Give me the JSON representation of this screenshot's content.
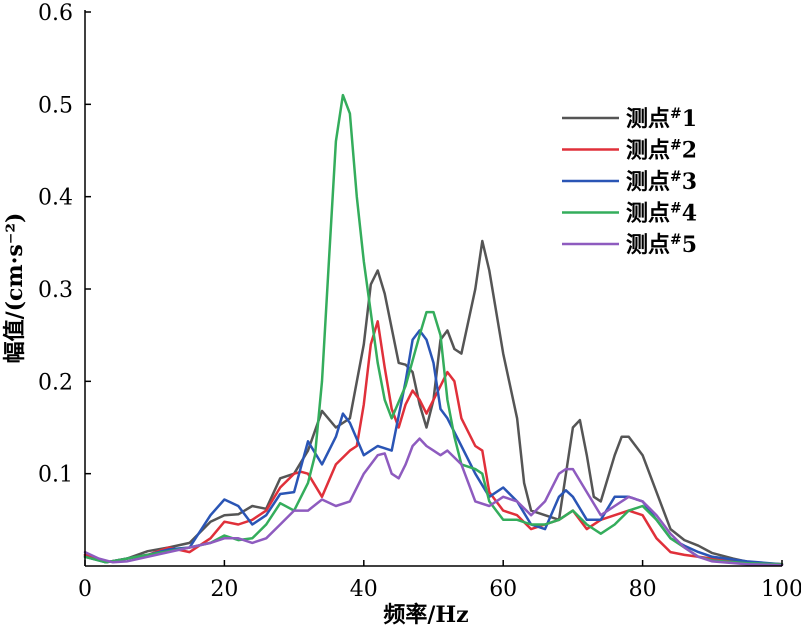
{
  "chart_data": {
    "type": "line",
    "xlabel": "频率/Hz",
    "ylabel": "幅值/(cm·s⁻²)",
    "xlim": [
      0,
      100
    ],
    "ylim": [
      0,
      0.6
    ],
    "xticks": [
      0,
      20,
      40,
      60,
      80,
      100
    ],
    "yticks": [
      0.1,
      0.2,
      0.3,
      0.4,
      0.5,
      0.6
    ],
    "xtick_labels": [
      "0",
      "20",
      "40",
      "60",
      "80",
      "100"
    ],
    "ytick_labels": [
      "0.1",
      "0.2",
      "0.3",
      "0.4",
      "0.5",
      "0.6"
    ],
    "grid": false,
    "legend_position": "top-right",
    "series": [
      {
        "name": "测点#1",
        "label_main": "测点",
        "label_sup": "#",
        "label_num": "1",
        "color": "#555555",
        "points": [
          [
            0,
            0.012
          ],
          [
            3,
            0.004
          ],
          [
            6,
            0.008
          ],
          [
            9,
            0.016
          ],
          [
            12,
            0.02
          ],
          [
            15,
            0.025
          ],
          [
            18,
            0.048
          ],
          [
            20,
            0.055
          ],
          [
            22,
            0.056
          ],
          [
            24,
            0.065
          ],
          [
            26,
            0.062
          ],
          [
            28,
            0.095
          ],
          [
            30,
            0.1
          ],
          [
            32,
            0.125
          ],
          [
            34,
            0.168
          ],
          [
            36,
            0.15
          ],
          [
            38,
            0.16
          ],
          [
            40,
            0.24
          ],
          [
            41,
            0.305
          ],
          [
            42,
            0.32
          ],
          [
            43,
            0.295
          ],
          [
            45,
            0.22
          ],
          [
            46,
            0.218
          ],
          [
            47,
            0.21
          ],
          [
            48,
            0.175
          ],
          [
            49,
            0.15
          ],
          [
            50,
            0.18
          ],
          [
            51,
            0.245
          ],
          [
            52,
            0.255
          ],
          [
            53,
            0.235
          ],
          [
            54,
            0.23
          ],
          [
            56,
            0.3
          ],
          [
            57,
            0.352
          ],
          [
            58,
            0.32
          ],
          [
            60,
            0.23
          ],
          [
            62,
            0.16
          ],
          [
            63,
            0.09
          ],
          [
            64,
            0.06
          ],
          [
            66,
            0.055
          ],
          [
            68,
            0.05
          ],
          [
            70,
            0.15
          ],
          [
            71,
            0.158
          ],
          [
            72,
            0.12
          ],
          [
            73,
            0.075
          ],
          [
            74,
            0.07
          ],
          [
            76,
            0.12
          ],
          [
            77,
            0.14
          ],
          [
            78,
            0.14
          ],
          [
            80,
            0.12
          ],
          [
            82,
            0.08
          ],
          [
            84,
            0.04
          ],
          [
            86,
            0.028
          ],
          [
            88,
            0.022
          ],
          [
            90,
            0.014
          ],
          [
            93,
            0.008
          ],
          [
            96,
            0.003
          ],
          [
            100,
            0.002
          ]
        ]
      },
      {
        "name": "测点#2",
        "label_main": "测点",
        "label_sup": "#",
        "label_num": "2",
        "color": "#e0303a",
        "points": [
          [
            0,
            0.012
          ],
          [
            3,
            0.004
          ],
          [
            6,
            0.008
          ],
          [
            9,
            0.012
          ],
          [
            12,
            0.02
          ],
          [
            15,
            0.015
          ],
          [
            18,
            0.03
          ],
          [
            20,
            0.048
          ],
          [
            22,
            0.045
          ],
          [
            24,
            0.05
          ],
          [
            26,
            0.06
          ],
          [
            28,
            0.085
          ],
          [
            30,
            0.1
          ],
          [
            31,
            0.102
          ],
          [
            32,
            0.1
          ],
          [
            34,
            0.075
          ],
          [
            36,
            0.11
          ],
          [
            38,
            0.125
          ],
          [
            39,
            0.13
          ],
          [
            40,
            0.175
          ],
          [
            41,
            0.24
          ],
          [
            42,
            0.265
          ],
          [
            43,
            0.215
          ],
          [
            44,
            0.17
          ],
          [
            45,
            0.15
          ],
          [
            46,
            0.175
          ],
          [
            47,
            0.19
          ],
          [
            48,
            0.18
          ],
          [
            49,
            0.165
          ],
          [
            50,
            0.18
          ],
          [
            51,
            0.195
          ],
          [
            52,
            0.21
          ],
          [
            53,
            0.2
          ],
          [
            54,
            0.16
          ],
          [
            56,
            0.13
          ],
          [
            57,
            0.125
          ],
          [
            58,
            0.08
          ],
          [
            60,
            0.06
          ],
          [
            62,
            0.055
          ],
          [
            64,
            0.04
          ],
          [
            66,
            0.045
          ],
          [
            68,
            0.05
          ],
          [
            70,
            0.06
          ],
          [
            72,
            0.04
          ],
          [
            74,
            0.05
          ],
          [
            76,
            0.055
          ],
          [
            78,
            0.06
          ],
          [
            80,
            0.055
          ],
          [
            82,
            0.03
          ],
          [
            84,
            0.015
          ],
          [
            86,
            0.012
          ],
          [
            88,
            0.01
          ],
          [
            90,
            0.008
          ],
          [
            95,
            0.004
          ],
          [
            100,
            0.002
          ]
        ]
      },
      {
        "name": "测点#3",
        "label_main": "测点",
        "label_sup": "#",
        "label_num": "3",
        "color": "#2a55b5",
        "points": [
          [
            0,
            0.01
          ],
          [
            3,
            0.004
          ],
          [
            6,
            0.008
          ],
          [
            9,
            0.012
          ],
          [
            12,
            0.018
          ],
          [
            15,
            0.02
          ],
          [
            18,
            0.055
          ],
          [
            20,
            0.072
          ],
          [
            22,
            0.065
          ],
          [
            24,
            0.045
          ],
          [
            26,
            0.055
          ],
          [
            28,
            0.078
          ],
          [
            30,
            0.08
          ],
          [
            32,
            0.135
          ],
          [
            34,
            0.11
          ],
          [
            36,
            0.14
          ],
          [
            37,
            0.165
          ],
          [
            38,
            0.155
          ],
          [
            40,
            0.12
          ],
          [
            42,
            0.13
          ],
          [
            44,
            0.125
          ],
          [
            46,
            0.2
          ],
          [
            47,
            0.245
          ],
          [
            48,
            0.255
          ],
          [
            49,
            0.245
          ],
          [
            50,
            0.22
          ],
          [
            51,
            0.17
          ],
          [
            52,
            0.16
          ],
          [
            54,
            0.13
          ],
          [
            56,
            0.1
          ],
          [
            58,
            0.075
          ],
          [
            60,
            0.085
          ],
          [
            62,
            0.07
          ],
          [
            64,
            0.045
          ],
          [
            66,
            0.04
          ],
          [
            68,
            0.075
          ],
          [
            69,
            0.082
          ],
          [
            70,
            0.075
          ],
          [
            72,
            0.05
          ],
          [
            74,
            0.05
          ],
          [
            76,
            0.075
          ],
          [
            78,
            0.075
          ],
          [
            80,
            0.07
          ],
          [
            82,
            0.05
          ],
          [
            84,
            0.03
          ],
          [
            86,
            0.022
          ],
          [
            88,
            0.015
          ],
          [
            90,
            0.01
          ],
          [
            95,
            0.005
          ],
          [
            100,
            0.002
          ]
        ]
      },
      {
        "name": "测点#4",
        "label_main": "测点",
        "label_sup": "#",
        "label_num": "4",
        "color": "#34ad5c",
        "points": [
          [
            0,
            0.01
          ],
          [
            3,
            0.004
          ],
          [
            6,
            0.008
          ],
          [
            9,
            0.012
          ],
          [
            12,
            0.016
          ],
          [
            15,
            0.02
          ],
          [
            18,
            0.025
          ],
          [
            20,
            0.033
          ],
          [
            22,
            0.028
          ],
          [
            24,
            0.03
          ],
          [
            26,
            0.045
          ],
          [
            28,
            0.068
          ],
          [
            30,
            0.06
          ],
          [
            32,
            0.09
          ],
          [
            33,
            0.12
          ],
          [
            34,
            0.2
          ],
          [
            35,
            0.33
          ],
          [
            36,
            0.46
          ],
          [
            37,
            0.51
          ],
          [
            38,
            0.49
          ],
          [
            39,
            0.4
          ],
          [
            40,
            0.33
          ],
          [
            42,
            0.22
          ],
          [
            43,
            0.18
          ],
          [
            44,
            0.16
          ],
          [
            46,
            0.195
          ],
          [
            48,
            0.25
          ],
          [
            49,
            0.275
          ],
          [
            50,
            0.275
          ],
          [
            51,
            0.25
          ],
          [
            52,
            0.18
          ],
          [
            53,
            0.14
          ],
          [
            54,
            0.11
          ],
          [
            56,
            0.105
          ],
          [
            57,
            0.1
          ],
          [
            58,
            0.07
          ],
          [
            60,
            0.05
          ],
          [
            62,
            0.05
          ],
          [
            64,
            0.045
          ],
          [
            66,
            0.045
          ],
          [
            68,
            0.05
          ],
          [
            70,
            0.06
          ],
          [
            72,
            0.045
          ],
          [
            74,
            0.035
          ],
          [
            76,
            0.045
          ],
          [
            78,
            0.06
          ],
          [
            80,
            0.065
          ],
          [
            82,
            0.05
          ],
          [
            84,
            0.03
          ],
          [
            86,
            0.02
          ],
          [
            88,
            0.01
          ],
          [
            90,
            0.006
          ],
          [
            95,
            0.003
          ],
          [
            100,
            0.002
          ]
        ]
      },
      {
        "name": "测点#5",
        "label_main": "测点",
        "label_sup": "#",
        "label_num": "5",
        "color": "#8e5bbf",
        "points": [
          [
            0,
            0.015
          ],
          [
            2,
            0.008
          ],
          [
            4,
            0.004
          ],
          [
            6,
            0.005
          ],
          [
            9,
            0.01
          ],
          [
            12,
            0.015
          ],
          [
            15,
            0.02
          ],
          [
            18,
            0.025
          ],
          [
            20,
            0.03
          ],
          [
            22,
            0.03
          ],
          [
            24,
            0.025
          ],
          [
            26,
            0.03
          ],
          [
            28,
            0.045
          ],
          [
            30,
            0.06
          ],
          [
            32,
            0.06
          ],
          [
            34,
            0.072
          ],
          [
            36,
            0.065
          ],
          [
            38,
            0.07
          ],
          [
            40,
            0.1
          ],
          [
            42,
            0.12
          ],
          [
            43,
            0.122
          ],
          [
            44,
            0.1
          ],
          [
            45,
            0.095
          ],
          [
            46,
            0.11
          ],
          [
            47,
            0.13
          ],
          [
            48,
            0.138
          ],
          [
            49,
            0.13
          ],
          [
            50,
            0.125
          ],
          [
            51,
            0.12
          ],
          [
            52,
            0.125
          ],
          [
            54,
            0.11
          ],
          [
            56,
            0.07
          ],
          [
            58,
            0.065
          ],
          [
            60,
            0.075
          ],
          [
            62,
            0.07
          ],
          [
            64,
            0.055
          ],
          [
            66,
            0.07
          ],
          [
            68,
            0.1
          ],
          [
            69,
            0.105
          ],
          [
            70,
            0.105
          ],
          [
            72,
            0.08
          ],
          [
            74,
            0.055
          ],
          [
            76,
            0.065
          ],
          [
            78,
            0.075
          ],
          [
            80,
            0.07
          ],
          [
            82,
            0.055
          ],
          [
            84,
            0.035
          ],
          [
            86,
            0.02
          ],
          [
            88,
            0.01
          ],
          [
            90,
            0.005
          ],
          [
            95,
            0.002
          ],
          [
            100,
            0.001
          ]
        ]
      }
    ]
  }
}
